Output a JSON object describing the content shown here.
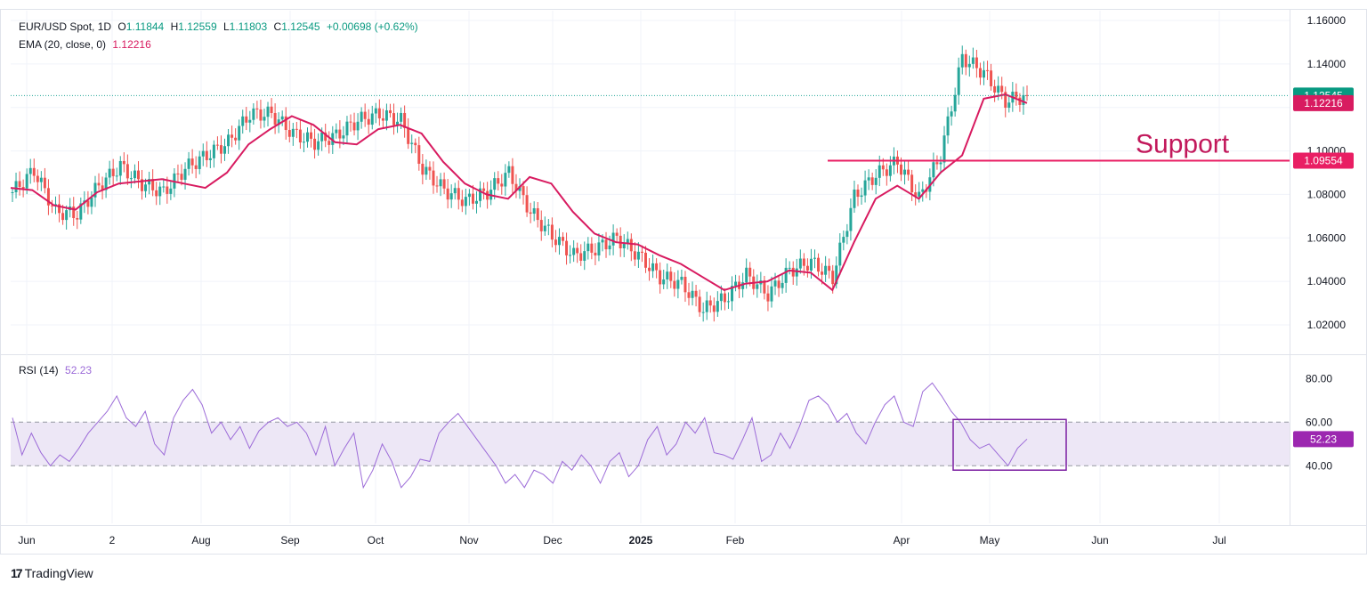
{
  "header": {
    "symbol": "EUR/USD Spot, 1D",
    "open_label": "O",
    "open": "1.11844",
    "high_label": "H",
    "high": "1.12559",
    "low_label": "L",
    "low": "1.11803",
    "close_label": "C",
    "close": "1.12545",
    "change": "+0.00698 (+0.62%)",
    "ema_label": "EMA (20, close, 0)",
    "ema_value": "1.12216"
  },
  "rsi_legend": {
    "label": "RSI (14)",
    "value": "52.23"
  },
  "brand": {
    "name": "TradingView"
  },
  "colors": {
    "up": "#26a69a",
    "down": "#ef5350",
    "ema": "#d81b60",
    "rsi": "#9c6bd8",
    "rsi_band": "#ede7f6",
    "support": "#e91e63"
  },
  "chart_data": [
    {
      "type": "candlestick",
      "title": "EUR/USD Spot, 1D",
      "x_tick_labels": [
        "Jun",
        "2",
        "Aug",
        "Sep",
        "Oct",
        "Nov",
        "Dec",
        "2025",
        "Feb",
        "Apr",
        "May",
        "Jun",
        "Jul"
      ],
      "y_tick_labels": [
        "1.16000",
        "1.14000",
        "1.12000",
        "1.10000",
        "1.08000",
        "1.06000",
        "1.04000",
        "1.02000"
      ],
      "ylim": [
        1.0065,
        1.1645
      ],
      "last_close": 1.12545,
      "last_price_label": "1.12545",
      "ema_label": "1.12216",
      "series": [
        {
          "name": "EMA (20, close, 0)",
          "values": [
            1.083,
            1.082,
            1.075,
            1.073,
            1.081,
            1.085,
            1.086,
            1.087,
            1.085,
            1.083,
            1.09,
            1.103,
            1.11,
            1.116,
            1.112,
            1.104,
            1.103,
            1.11,
            1.112,
            1.108,
            1.095,
            1.085,
            1.08,
            1.078,
            1.088,
            1.085,
            1.072,
            1.062,
            1.058,
            1.057,
            1.052,
            1.048,
            1.042,
            1.036,
            1.039,
            1.04,
            1.045,
            1.044,
            1.036,
            1.058,
            1.078,
            1.084,
            1.078,
            1.09,
            1.098,
            1.124,
            1.126,
            1.122
          ]
        },
        {
          "name": "Close",
          "values": [
            1.081,
            1.091,
            1.072,
            1.071,
            1.084,
            1.093,
            1.085,
            1.081,
            1.092,
            1.098,
            1.104,
            1.117,
            1.117,
            1.108,
            1.104,
            1.107,
            1.114,
            1.117,
            1.114,
            1.092,
            1.082,
            1.077,
            1.081,
            1.09,
            1.072,
            1.061,
            1.052,
            1.055,
            1.06,
            1.052,
            1.042,
            1.039,
            1.027,
            1.032,
            1.043,
            1.034,
            1.045,
            1.049,
            1.042,
            1.079,
            1.089,
            1.095,
            1.078,
            1.098,
            1.143,
            1.136,
            1.123,
            1.12545
          ]
        }
      ],
      "annotations": [
        {
          "text": "Support",
          "level": 1.09554,
          "price_label": "1.09554"
        }
      ]
    },
    {
      "type": "line",
      "title": "RSI (14)",
      "y_tick_labels": [
        "80.00",
        "60.00",
        "40.00"
      ],
      "ylim": [
        13.6,
        89.1
      ],
      "band": [
        40,
        60
      ],
      "last_value_label": "52.23",
      "series": [
        {
          "name": "RSI (14)",
          "values": [
            62,
            45,
            55,
            46,
            40,
            45,
            42,
            48,
            55,
            60,
            65,
            72,
            62,
            58,
            65,
            50,
            45,
            62,
            70,
            75,
            68,
            55,
            60,
            52,
            58,
            48,
            56,
            60,
            62,
            58,
            60,
            55,
            45,
            58,
            40,
            48,
            55,
            30,
            38,
            50,
            42,
            30,
            35,
            43,
            42,
            55,
            60,
            64,
            58,
            52,
            46,
            40,
            32,
            36,
            30,
            38,
            36,
            32,
            42,
            38,
            45,
            40,
            32,
            42,
            46,
            35,
            40,
            52,
            58,
            45,
            50,
            60,
            55,
            62,
            46,
            45,
            43,
            52,
            62,
            42,
            45,
            55,
            48,
            58,
            70,
            72,
            68,
            60,
            64,
            55,
            50,
            60,
            68,
            72,
            60,
            58,
            74,
            78,
            72,
            65,
            60,
            52,
            48,
            50,
            45,
            40,
            48,
            52.23
          ]
        }
      ],
      "annotations": [
        {
          "text": "highlight box",
          "x_range": [
            "May 1",
            "Jun 2"
          ],
          "y_range": [
            38,
            60
          ]
        }
      ]
    }
  ]
}
